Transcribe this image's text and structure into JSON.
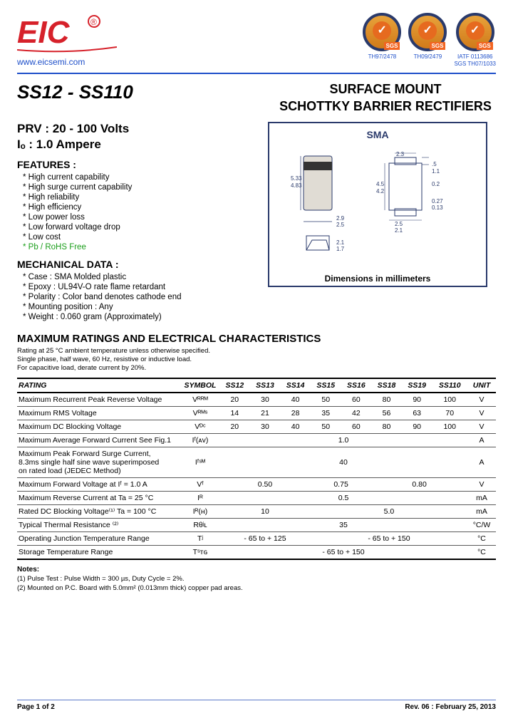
{
  "header": {
    "website": "www.eicsemi.com",
    "badges": [
      {
        "label": "TH97/2478"
      },
      {
        "label": "TH09/2479"
      },
      {
        "label": "IATF 0113686\nSGS TH07/1033"
      }
    ]
  },
  "title": {
    "part_range": "SS12 - SS110",
    "product_line1": "SURFACE MOUNT",
    "product_line2": "SCHOTTKY BARRIER RECTIFIERS"
  },
  "specs": {
    "prv": "PRV :  20 - 100 Volts",
    "io": "Iₒ :   1.0 Ampere"
  },
  "features": {
    "head": "FEATURES :",
    "items": [
      "High current capability",
      "High surge current capability",
      "High reliability",
      "High efficiency",
      "Low power loss",
      "Low forward voltage drop",
      "Low cost"
    ],
    "pb_free": "Pb / RoHS Free"
  },
  "mechanical": {
    "head": "MECHANICAL  DATA :",
    "items": [
      "Case :  SMA Molded plastic",
      "Epoxy :  UL94V-O rate flame retardant",
      "Polarity : Color band denotes cathode end",
      "Mounting  position : Any",
      "Weight : 0.060 gram (Approximately)"
    ]
  },
  "diagram": {
    "title": "SMA",
    "caption": "Dimensions in millimeters",
    "dims": {
      "h1": "5.33",
      "h2": "4.83",
      "w1": "2.9",
      "w2": "2.5",
      "t1": "2.1",
      "t2": "1.7",
      "tw1": "2.3",
      "tw2": "2.1",
      "lh1": "4.5",
      "lh2": "4.2",
      "lip1": ".5",
      "lip2": "1.1",
      "th": "0.2",
      "sw1": "2.5",
      "sw2": "2.1",
      "lead1": "0.27",
      "lead2": "0.13"
    }
  },
  "ratings": {
    "head": "MAXIMUM  RATINGS  AND  ELECTRICAL  CHARACTERISTICS",
    "sub1": "Rating at 25 °C ambient temperature unless otherwise specified.",
    "sub2": "Single phase, half wave, 60 Hz, resistive or inductive load.",
    "sub3": "For capacitive load, derate current by 20%.",
    "col_rating": "RATING",
    "col_symbol": "SYMBOL",
    "parts": [
      "SS12",
      "SS13",
      "SS14",
      "SS15",
      "SS16",
      "SS18",
      "SS19",
      "SS110"
    ],
    "col_unit": "UNIT",
    "rows": [
      {
        "label": "Maximum Recurrent Peak Reverse Voltage",
        "sym": "Vᴿᴿᴹ",
        "vals": [
          "20",
          "30",
          "40",
          "50",
          "60",
          "80",
          "90",
          "100"
        ],
        "unit": "V"
      },
      {
        "label": "Maximum RMS Voltage",
        "sym": "Vᴿᴹˢ",
        "vals": [
          "14",
          "21",
          "28",
          "35",
          "42",
          "56",
          "63",
          "70"
        ],
        "unit": "V"
      },
      {
        "label": "Maximum DC Blocking Voltage",
        "sym": "Vᴰᶜ",
        "vals": [
          "20",
          "30",
          "40",
          "50",
          "60",
          "80",
          "90",
          "100"
        ],
        "unit": "V"
      },
      {
        "label": "Maximum Average Forward Current        See Fig.1",
        "sym": "Iᶠ(ᴀᴠ)",
        "span": "1.0",
        "unit": "A"
      },
      {
        "label": "Maximum Peak Forward Surge Current,<br>8.3ms single half sine wave superimposed<br>on rated load (JEDEC Method)",
        "sym": "Iᶠˢᴹ",
        "span": "40",
        "unit": "A"
      },
      {
        "label": "Maximum Forward Voltage at Iᶠ = 1.0 A",
        "sym": "Vᶠ",
        "groups": [
          {
            "span": 3,
            "val": "0.50"
          },
          {
            "span": 2,
            "val": "0.75"
          },
          {
            "span": 3,
            "val": "0.80"
          }
        ],
        "unit": "V"
      },
      {
        "label": "Maximum Reverse Current at            Ta = 25 °C",
        "sym": "Iᴿ",
        "span": "0.5",
        "unit": "mA"
      },
      {
        "label": "Rated DC Blocking Voltage⁽¹⁾          Ta = 100 °C",
        "sym": "Iᴿ(ʜ)",
        "groups": [
          {
            "span": 3,
            "val": "10"
          },
          {
            "span": 5,
            "val": "5.0"
          }
        ],
        "unit": "mA"
      },
      {
        "label": "Typical Thermal Resistance ⁽²⁾",
        "sym": "Rθʲʟ",
        "span": "35",
        "unit": "°C/W"
      },
      {
        "label": "Operating Junction Temperature Range",
        "sym": "Tʲ",
        "groups": [
          {
            "span": 3,
            "val": "- 65 to + 125"
          },
          {
            "span": 5,
            "val": "- 65 to + 150"
          }
        ],
        "unit": "°C"
      },
      {
        "label": "Storage Temperature Range",
        "sym": "Tˢᴛɢ",
        "span": "- 65 to + 150",
        "unit": "°C"
      }
    ]
  },
  "notes": {
    "head": "Notes:",
    "n1": "(1) Pulse Test :  Pulse Width = 300 µs, Duty Cycle = 2%.",
    "n2": "(2) Mounted on P.C. Board with 5.0mm² (0.013mm thick) copper pad areas."
  },
  "footer": {
    "page": "Page 1 of 2",
    "rev": "Rev. 06 : February 25, 2013"
  },
  "colors": {
    "blue": "#1e4fc9",
    "navy": "#2a3a6b",
    "orange": "#e66a1f",
    "green": "#1a9e1a",
    "red": "#d6212a"
  }
}
